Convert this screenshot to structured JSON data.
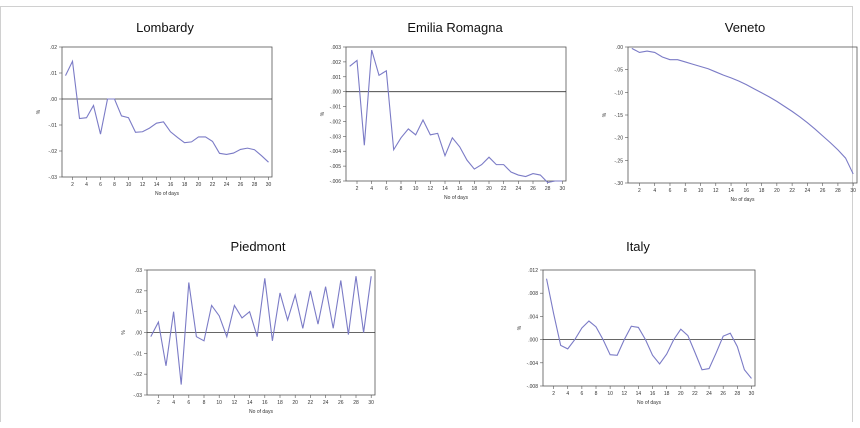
{
  "chart_data": [
    {
      "type": "line",
      "title": "Lombardy",
      "xlabel": "No of days",
      "ylabel": "%",
      "ylim": [
        -0.03,
        0.02
      ],
      "yticks": [
        ".02",
        ".01",
        ".00",
        "-.01",
        "-.02",
        "-.03"
      ],
      "ytick_values": [
        0.02,
        0.01,
        0.0,
        -0.01,
        -0.02,
        -0.03
      ],
      "xticks": [
        2,
        4,
        6,
        8,
        10,
        12,
        14,
        16,
        18,
        20,
        22,
        24,
        26,
        28,
        30
      ],
      "reference_line": 0,
      "x": [
        1,
        2,
        3,
        4,
        5,
        6,
        7,
        8,
        9,
        10,
        11,
        12,
        13,
        14,
        15,
        16,
        17,
        18,
        19,
        20,
        21,
        22,
        23,
        24,
        25,
        26,
        27,
        28,
        29,
        30
      ],
      "values": [
        0.009,
        0.0145,
        -0.0075,
        -0.0072,
        -0.0025,
        -0.0135,
        0.0,
        0.0,
        -0.0065,
        -0.0072,
        -0.0128,
        -0.0126,
        -0.0112,
        -0.0093,
        -0.0088,
        -0.0126,
        -0.0148,
        -0.0168,
        -0.0165,
        -0.0146,
        -0.0146,
        -0.0163,
        -0.0209,
        -0.0213,
        -0.0208,
        -0.0194,
        -0.0189,
        -0.0195,
        -0.0218,
        -0.0243
      ],
      "color": "#7b7bc6"
    },
    {
      "type": "line",
      "title": "Emilia Romagna",
      "xlabel": "No of days",
      "ylabel": "%",
      "ylim": [
        -0.006,
        0.003
      ],
      "yticks": [
        ".003",
        ".002",
        ".001",
        ".000",
        "-.001",
        "-.002",
        "-.003",
        "-.004",
        "-.005",
        "-.006"
      ],
      "ytick_values": [
        0.003,
        0.002,
        0.001,
        0.0,
        -0.001,
        -0.002,
        -0.003,
        -0.004,
        -0.005,
        -0.006
      ],
      "xticks": [
        2,
        4,
        6,
        8,
        10,
        12,
        14,
        16,
        18,
        20,
        22,
        24,
        26,
        28,
        30
      ],
      "reference_line": 0,
      "x": [
        1,
        2,
        3,
        4,
        5,
        6,
        7,
        8,
        9,
        10,
        11,
        12,
        13,
        14,
        15,
        16,
        17,
        18,
        19,
        20,
        21,
        22,
        23,
        24,
        25,
        26,
        27,
        28,
        29,
        30
      ],
      "values": [
        0.0017,
        0.0021,
        -0.0036,
        0.0028,
        0.0011,
        0.0014,
        -0.0039,
        -0.0031,
        -0.0025,
        -0.0029,
        -0.0019,
        -0.0029,
        -0.0028,
        -0.0043,
        -0.0031,
        -0.0037,
        -0.0046,
        -0.0052,
        -0.0049,
        -0.0044,
        -0.0049,
        -0.0049,
        -0.0054,
        -0.0056,
        -0.0057,
        -0.0055,
        -0.0056,
        -0.0061,
        -0.006,
        -0.006
      ],
      "color": "#7b7bc6"
    },
    {
      "type": "line",
      "title": "Veneto",
      "xlabel": "No of days",
      "ylabel": "%",
      "ylim": [
        -0.3,
        0.0
      ],
      "yticks": [
        ".00",
        "-.05",
        "-.10",
        "-.15",
        "-.20",
        "-.25",
        "-.30"
      ],
      "ytick_values": [
        0.0,
        -0.05,
        -0.1,
        -0.15,
        -0.2,
        -0.25,
        -0.3
      ],
      "xticks": [
        2,
        4,
        6,
        8,
        10,
        12,
        14,
        16,
        18,
        20,
        22,
        24,
        26,
        28,
        30
      ],
      "x": [
        1,
        2,
        3,
        4,
        5,
        6,
        7,
        8,
        9,
        10,
        11,
        12,
        13,
        14,
        15,
        16,
        17,
        18,
        19,
        20,
        21,
        22,
        23,
        24,
        25,
        26,
        27,
        28,
        29,
        30
      ],
      "values": [
        -0.003,
        -0.012,
        -0.009,
        -0.012,
        -0.022,
        -0.028,
        -0.028,
        -0.033,
        -0.038,
        -0.043,
        -0.048,
        -0.055,
        -0.062,
        -0.068,
        -0.075,
        -0.083,
        -0.092,
        -0.101,
        -0.11,
        -0.12,
        -0.131,
        -0.142,
        -0.154,
        -0.167,
        -0.181,
        -0.196,
        -0.211,
        -0.227,
        -0.245,
        -0.28
      ],
      "color": "#7b7bc6"
    },
    {
      "type": "line",
      "title": "Piedmont",
      "xlabel": "No of days",
      "ylabel": "%",
      "ylim": [
        -0.03,
        0.03
      ],
      "yticks": [
        ".03",
        ".02",
        ".01",
        ".00",
        "-.01",
        "-.02",
        "-.03"
      ],
      "ytick_values": [
        0.03,
        0.02,
        0.01,
        0.0,
        -0.01,
        -0.02,
        -0.03
      ],
      "xticks": [
        2,
        4,
        6,
        8,
        10,
        12,
        14,
        16,
        18,
        20,
        22,
        24,
        26,
        28,
        30
      ],
      "reference_line": 0,
      "x": [
        1,
        2,
        3,
        4,
        5,
        6,
        7,
        8,
        9,
        10,
        11,
        12,
        13,
        14,
        15,
        16,
        17,
        18,
        19,
        20,
        21,
        22,
        23,
        24,
        25,
        26,
        27,
        28,
        29,
        30
      ],
      "values": [
        -0.002,
        0.005,
        -0.016,
        0.01,
        -0.025,
        0.024,
        -0.002,
        -0.004,
        0.013,
        0.008,
        -0.002,
        0.013,
        0.007,
        0.01,
        -0.002,
        0.026,
        -0.004,
        0.019,
        0.006,
        0.018,
        0.002,
        0.02,
        0.004,
        0.022,
        0.002,
        0.025,
        -0.001,
        0.027,
        0.0,
        0.027
      ],
      "color": "#7b7bc6"
    },
    {
      "type": "line",
      "title": "Italy",
      "xlabel": "No of days",
      "ylabel": "%",
      "ylim": [
        -0.008,
        0.012
      ],
      "yticks": [
        ".012",
        ".008",
        ".004",
        ".000",
        "-.004",
        "-.008"
      ],
      "ytick_values": [
        0.012,
        0.008,
        0.004,
        0.0,
        -0.004,
        -0.008
      ],
      "xticks": [
        2,
        4,
        6,
        8,
        10,
        12,
        14,
        16,
        18,
        20,
        22,
        24,
        26,
        28,
        30
      ],
      "reference_line": 0,
      "x": [
        1,
        2,
        3,
        4,
        5,
        6,
        7,
        8,
        9,
        10,
        11,
        12,
        13,
        14,
        15,
        16,
        17,
        18,
        19,
        20,
        21,
        22,
        23,
        24,
        25,
        26,
        27,
        28,
        29,
        30
      ],
      "values": [
        0.0105,
        0.0045,
        -0.001,
        -0.0016,
        0.0,
        0.002,
        0.0032,
        0.0022,
        0.0,
        -0.0026,
        -0.0027,
        0.0,
        0.0023,
        0.0021,
        0.0,
        -0.0027,
        -0.0042,
        -0.0025,
        0.0,
        0.0018,
        0.0007,
        -0.0022,
        -0.0052,
        -0.005,
        -0.0023,
        0.0006,
        0.0011,
        -0.0012,
        -0.0052,
        -0.0067
      ],
      "color": "#7b7bc6"
    }
  ]
}
